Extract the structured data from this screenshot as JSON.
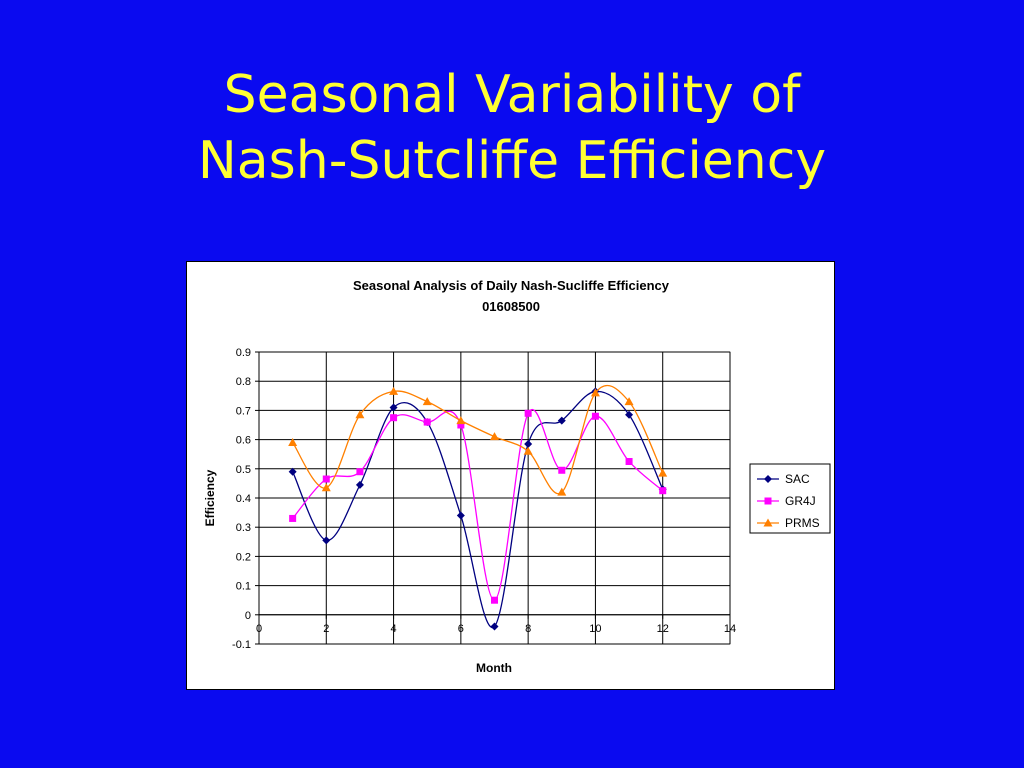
{
  "slide": {
    "title_line1": "Seasonal Variability of",
    "title_line2": "Nash-Sutcliffe Efficiency"
  },
  "colors": {
    "background": "#0a0af0",
    "title": "#ffff33",
    "SAC": "#000080",
    "GR4J": "#ff00ff",
    "PRMS": "#ff8000"
  },
  "chart_data": {
    "type": "line",
    "title": "Seasonal Analysis of Daily Nash-Sucliffe Efficiency",
    "subtitle": "01608500",
    "xlabel": "Month",
    "ylabel": "Efficiency",
    "xlim": [
      0,
      14
    ],
    "ylim": [
      -0.1,
      0.9
    ],
    "xticks": [
      0,
      2,
      4,
      6,
      8,
      10,
      12,
      14
    ],
    "xtick_labels": [
      "0",
      "2",
      "4",
      "6",
      "8",
      "10",
      "12",
      "14"
    ],
    "yticks": [
      -0.1,
      0,
      0.1,
      0.2,
      0.3,
      0.4,
      0.5,
      0.6,
      0.7,
      0.8,
      0.9
    ],
    "ytick_labels": [
      "-0.1",
      "0",
      "0.1",
      "0.2",
      "0.3",
      "0.4",
      "0.5",
      "0.6",
      "0.7",
      "0.8",
      "0.9"
    ],
    "grid": true,
    "smoothed": true,
    "legend_position": "right",
    "x": [
      1,
      2,
      3,
      4,
      5,
      6,
      7,
      8,
      9,
      10,
      11,
      12
    ],
    "series": [
      {
        "name": "SAC",
        "marker": "diamond",
        "color": "#000080",
        "values": [
          0.49,
          0.255,
          0.445,
          0.71,
          0.66,
          0.34,
          -0.04,
          0.585,
          0.665,
          0.765,
          0.685,
          0.43
        ]
      },
      {
        "name": "GR4J",
        "marker": "square",
        "color": "#ff00ff",
        "values": [
          0.33,
          0.465,
          0.49,
          0.675,
          0.66,
          0.65,
          0.05,
          0.69,
          0.495,
          0.68,
          0.525,
          0.425
        ]
      },
      {
        "name": "PRMS",
        "marker": "triangle",
        "color": "#ff8000",
        "values": [
          0.59,
          0.435,
          0.685,
          0.765,
          0.73,
          0.665,
          0.61,
          0.56,
          0.42,
          0.76,
          0.73,
          0.485
        ]
      }
    ]
  }
}
